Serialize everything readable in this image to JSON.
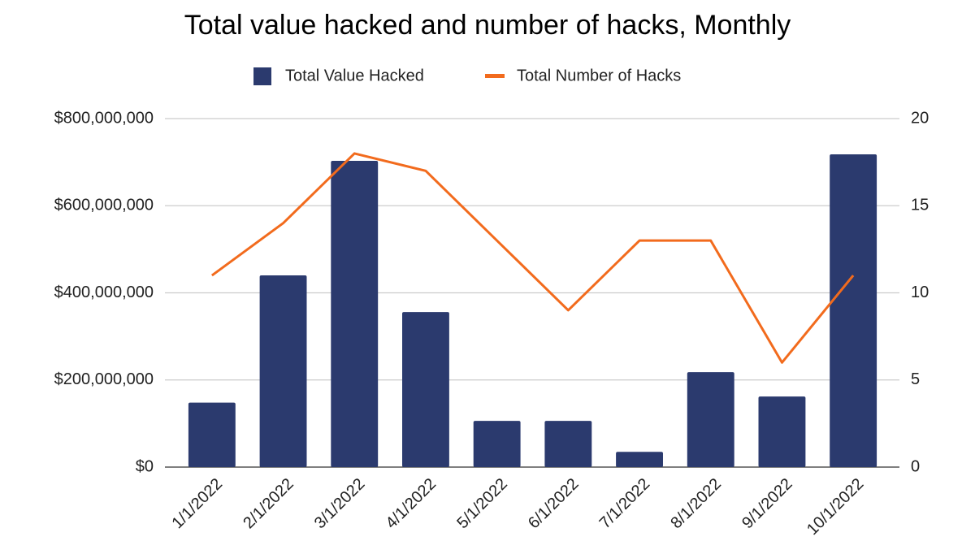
{
  "chart_data": {
    "type": "bar-line",
    "title": "Total value hacked and number of hacks, Monthly",
    "categories": [
      "1/1/2022",
      "2/1/2022",
      "3/1/2022",
      "4/1/2022",
      "5/1/2022",
      "6/1/2022",
      "7/1/2022",
      "8/1/2022",
      "9/1/2022",
      "10/1/2022"
    ],
    "series": [
      {
        "name": "Total Value Hacked",
        "color": "#2b3a6e",
        "type": "bar",
        "values": [
          148000000,
          440000000,
          703000000,
          356000000,
          106000000,
          106000000,
          35000000,
          218000000,
          162000000,
          718000000
        ]
      },
      {
        "name": "Total Number of Hacks",
        "color": "#f26b1d",
        "type": "line",
        "axis": "y2",
        "values": [
          11,
          14,
          18,
          17,
          13,
          9,
          13,
          13,
          6,
          11
        ]
      }
    ],
    "ylim": [
      0,
      800000000
    ],
    "yticks": [
      {
        "value": 0,
        "label": "$0"
      },
      {
        "value": 200000000,
        "label": "$200,000,000"
      },
      {
        "value": 400000000,
        "label": "$400,000,000"
      },
      {
        "value": 600000000,
        "label": "$600,000,000"
      },
      {
        "value": 800000000,
        "label": "$800,000,000"
      }
    ],
    "y2lim": [
      0,
      20
    ],
    "y2ticks": [
      0,
      5,
      10,
      15,
      20
    ],
    "grid": true
  }
}
